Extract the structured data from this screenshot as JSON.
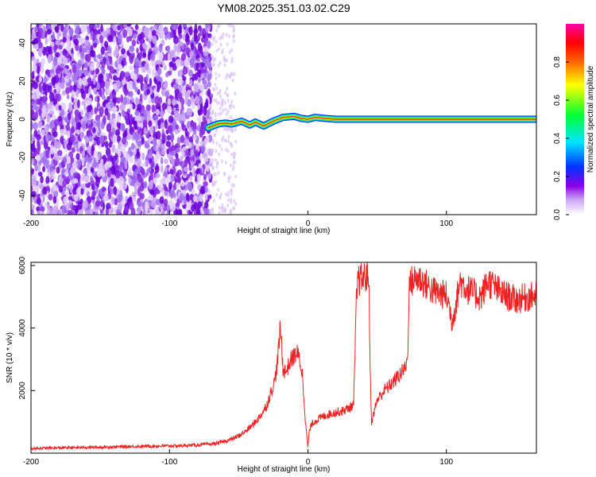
{
  "title": "YM08.2025.351.03.02.C29",
  "chart_data": [
    {
      "type": "heatmap",
      "xlabel": "Height of straight line (km)",
      "ylabel": "Frequency (Hz)",
      "xlim": [
        -200,
        165
      ],
      "ylim": [
        -50,
        50
      ],
      "x_ticks": [
        -200,
        -100,
        0,
        100
      ],
      "y_ticks": [
        -40,
        -20,
        0,
        20,
        40
      ],
      "grid": false,
      "colorbar": {
        "label": "Normalized spectral amplitude",
        "range": [
          0,
          1
        ],
        "ticks": [
          "0.0",
          "0.2",
          "0.4",
          "0.6",
          "0.8"
        ],
        "colors": [
          "#ffffff",
          "#8a00e6",
          "#0033ff",
          "#00e5ff",
          "#00ff33",
          "#ffff00",
          "#ff6600",
          "#ff0000",
          "#ff00aa"
        ]
      },
      "noise_region": {
        "x": [
          -200,
          -70
        ],
        "frequency_range": [
          -50,
          50
        ],
        "amplitude": "low"
      },
      "signal_track": [
        {
          "x": -72,
          "f": -4.5
        },
        {
          "x": -65,
          "f": -2.5
        },
        {
          "x": -60,
          "f": -2.0
        },
        {
          "x": -55,
          "f": -2.5
        },
        {
          "x": -48,
          "f": -1.0
        },
        {
          "x": -42,
          "f": -3.0
        },
        {
          "x": -38,
          "f": -1.5
        },
        {
          "x": -32,
          "f": -3.5
        },
        {
          "x": -25,
          "f": -1.0
        },
        {
          "x": -18,
          "f": 1.0
        },
        {
          "x": -10,
          "f": 1.5
        },
        {
          "x": -5,
          "f": 0.5
        },
        {
          "x": 0,
          "f": 0.0
        },
        {
          "x": 5,
          "f": 1.0
        },
        {
          "x": 12,
          "f": 0.5
        },
        {
          "x": 20,
          "f": 0.0
        },
        {
          "x": 50,
          "f": 0.0
        },
        {
          "x": 100,
          "f": 0.0
        },
        {
          "x": 165,
          "f": 0.0
        }
      ]
    },
    {
      "type": "line",
      "xlabel": "Height of straight line (km)",
      "ylabel": "SNR (10 * v/v)",
      "xlim": [
        -200,
        165
      ],
      "ylim": [
        0,
        6100
      ],
      "x_ticks": [
        -200,
        -100,
        0,
        100
      ],
      "y_ticks": [
        2000,
        4000,
        6000
      ],
      "grid": false,
      "color": "#ee2222",
      "series": [
        {
          "x": [
            -200,
            -190,
            -180,
            -170,
            -160,
            -150,
            -140,
            -130,
            -120,
            -110,
            -100,
            -90,
            -80,
            -70,
            -65,
            -60,
            -55,
            -50,
            -45,
            -40,
            -35,
            -30,
            -27,
            -24,
            -22,
            -20,
            -19,
            -18,
            -16,
            -14,
            -12,
            -10,
            -8,
            -6,
            -4,
            -2,
            -1,
            0,
            1,
            3,
            6,
            10,
            15,
            20,
            25,
            30,
            33,
            35,
            36,
            40,
            44,
            45,
            46,
            50,
            55,
            60,
            65,
            70,
            72,
            73,
            75,
            80,
            85,
            90,
            95,
            100,
            102,
            104,
            106,
            110,
            115,
            120,
            125,
            130,
            135,
            140,
            145,
            150,
            155,
            160,
            165
          ],
          "values": [
            150,
            160,
            170,
            175,
            185,
            190,
            200,
            210,
            220,
            225,
            230,
            240,
            260,
            290,
            320,
            380,
            450,
            550,
            700,
            900,
            1150,
            1500,
            1900,
            2300,
            2900,
            4000,
            3500,
            2700,
            2600,
            2800,
            3000,
            3100,
            3200,
            3000,
            2500,
            1200,
            600,
            200,
            700,
            950,
            1050,
            1150,
            1250,
            1300,
            1350,
            1450,
            1550,
            4800,
            5500,
            5600,
            5700,
            2500,
            1000,
            1700,
            2000,
            2200,
            2450,
            2700,
            3000,
            5300,
            5500,
            5600,
            5400,
            5200,
            5100,
            5050,
            4700,
            4200,
            4600,
            5500,
            5250,
            5100,
            5000,
            5500,
            5300,
            5100,
            5000,
            4900,
            4950,
            5000,
            5050
          ]
        }
      ]
    }
  ]
}
